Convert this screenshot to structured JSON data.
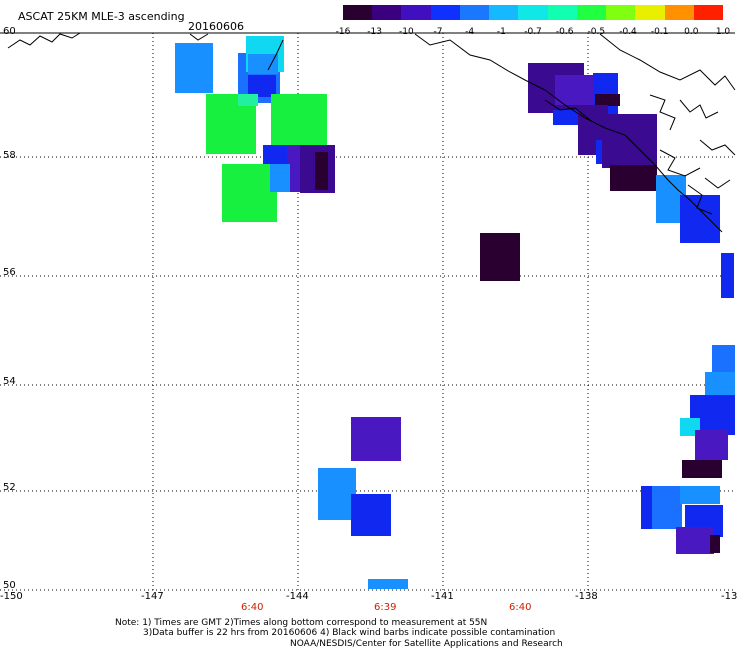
{
  "title": "ASCAT 25KM MLE-3 ascending",
  "date": "20160606",
  "colorbar": {
    "labels": [
      "-16",
      "-13",
      "-10",
      "-7",
      "-4",
      "-1",
      "-0.7",
      "-0.6",
      "-0.5",
      "-0.4",
      "-0.1",
      "0.0",
      "1.0"
    ],
    "colors": [
      "#2a0030",
      "#3a0080",
      "#4010c0",
      "#1030ff",
      "#1a78ff",
      "#16b8ff",
      "#10e8e8",
      "#10ffb0",
      "#20ff40",
      "#80ff10",
      "#e8f000",
      "#ff9000",
      "#ff2000"
    ]
  },
  "axes": {
    "lat_labels": [
      "60",
      "58",
      "56",
      "54",
      "52",
      "50"
    ],
    "lon_labels": [
      "-150",
      "-147",
      "-144",
      "-141",
      "-138",
      "-13"
    ]
  },
  "times": [
    "6:40",
    "6:39",
    "6:40"
  ],
  "notes": {
    "line1": "Note: 1) Times are GMT 2)Times along bottom correspond to measurement at 55N",
    "line2": "3)Data buffer is 22 hrs from 20160606 4) Black wind barbs indicate possible contamination",
    "line3": "NOAA/NESDIS/Center for Satellite Applications and Research"
  },
  "palette": {
    "deep_purple": "#2a0030",
    "purple": "#3a0a90",
    "violet": "#4a18c0",
    "blue": "#1028f0",
    "mid_blue": "#1a70ff",
    "light_blue": "#1890ff",
    "cyan": "#10d8f0",
    "green": "#18f040",
    "aqua_green": "#20f0a0"
  }
}
